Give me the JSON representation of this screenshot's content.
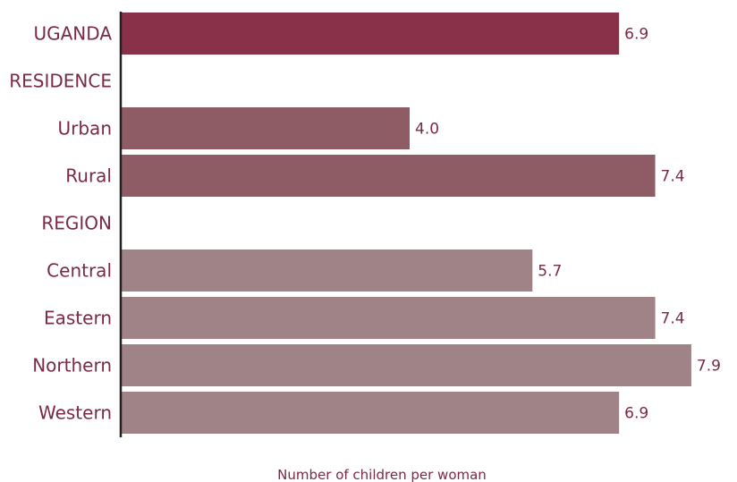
{
  "chart_data": {
    "type": "bar",
    "orientation": "horizontal",
    "title": "",
    "xlabel": "Number of children per woman",
    "ylabel": "",
    "xlim": [
      0,
      8
    ],
    "grid": false,
    "legend": "none",
    "categories": [
      "UGANDA",
      "RESIDENCE",
      "Urban",
      "Rural",
      "REGION",
      "Central",
      "Eastern",
      "Northern",
      "Western"
    ],
    "values": [
      6.9,
      null,
      4.0,
      7.4,
      null,
      5.7,
      7.4,
      7.9,
      6.9
    ],
    "value_labels": [
      "6.9",
      "",
      "4.0",
      "7.4",
      "",
      "5.7",
      "7.4",
      "7.9",
      "6.9"
    ],
    "bar_colors": [
      "#8a314a",
      null,
      "#8e5c64",
      "#8e5c64",
      null,
      "#a08386",
      "#a08386",
      "#a08386",
      "#a08386"
    ],
    "text_color": "#7a2a45",
    "axis_color": "#222222"
  }
}
